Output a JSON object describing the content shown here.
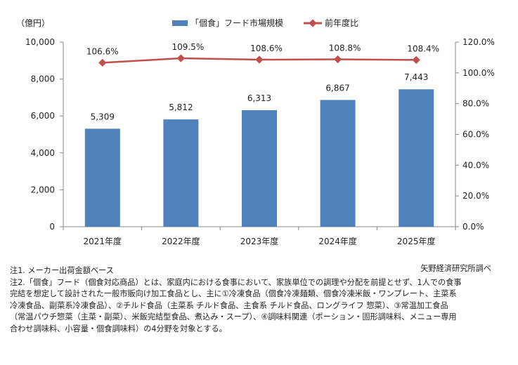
{
  "chart_data": {
    "type": "bar",
    "categories": [
      "2021年度",
      "2022年度",
      "2023年度",
      "2024年度",
      "2025年度"
    ],
    "series": [
      {
        "name": "「個食」フード市場規模",
        "kind": "bar",
        "axis": "left",
        "color": "#4f81bd",
        "values": [
          5309,
          5812,
          6313,
          6867,
          7443
        ],
        "labels": [
          "5,309",
          "5,812",
          "6,313",
          "6,867",
          "7,443"
        ]
      },
      {
        "name": "前年度比",
        "kind": "line",
        "axis": "right",
        "color": "#c0504d",
        "values": [
          106.6,
          109.5,
          108.6,
          108.8,
          108.4
        ],
        "labels": [
          "106.6%",
          "109.5%",
          "108.6%",
          "108.8%",
          "108.4%"
        ]
      }
    ],
    "y_unit": "（億円）",
    "ylim": [
      0,
      10000
    ],
    "yticks": [
      "0",
      "2,000",
      "4,000",
      "6,000",
      "8,000",
      "10,000"
    ],
    "y2lim": [
      0,
      120
    ],
    "y2ticks": [
      "0.0%",
      "20.0%",
      "40.0%",
      "60.0%",
      "80.0%",
      "100.0%",
      "120.0%"
    ],
    "grid": false,
    "legend_position": "top"
  },
  "source": "矢野経済研究所調べ",
  "notes": [
    "注1. メーカー出荷金額ベース",
    "注2.「個食」フード（個食対応商品）とは、家庭内における食事において、家族単位での調理や分配を前提とせず、1人での食事",
    "完結を想定して設計された一般市販向け加工食品とし、主に①冷凍食品（個食冷凍麺類、個食冷凍米飯・ワンプレート、主菜系",
    "冷凍食品、副菜系冷凍食品）、②チルド食品（主菜系 チルド食品、主食系 チルド食品、ロングライフ 惣菜）、③常温加工食品",
    "（常温パウチ惣菜（主菜・副菜）、米飯完結型食品、煮込み・スープ）、④調味料関連（ポーション・固形調味料、メニュー専用",
    "合わせ調味料、小容量・個食調味料）の4分野を対象とする。"
  ]
}
